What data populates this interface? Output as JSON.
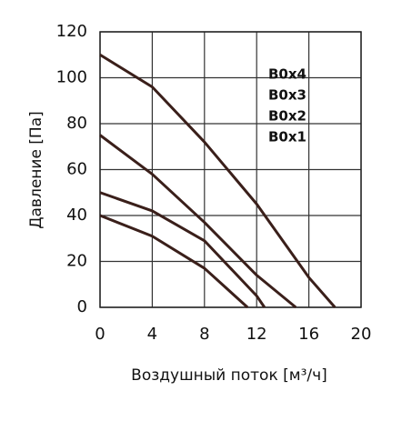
{
  "chart_data": {
    "type": "line",
    "xlabel": "Воздушный поток [м³/ч]",
    "ylabel": "Давление [Па]",
    "xlim": [
      0,
      20
    ],
    "xticks": [
      0,
      4,
      8,
      12,
      16,
      20
    ],
    "ylim": [
      0,
      120
    ],
    "yticks": [
      0,
      20,
      40,
      60,
      80,
      100,
      120
    ],
    "grid": true,
    "series": [
      {
        "name": "B0x4",
        "color": "#3a1f1a",
        "x": [
          0,
          4,
          8,
          12,
          16,
          18
        ],
        "values": [
          110,
          96,
          72,
          45,
          13,
          0
        ]
      },
      {
        "name": "B0x3",
        "color": "#3a1f1a",
        "x": [
          0,
          4,
          8,
          12,
          15
        ],
        "values": [
          75,
          58,
          37,
          14,
          0
        ]
      },
      {
        "name": "B0x2",
        "color": "#3a1f1a",
        "x": [
          0,
          4,
          8,
          12,
          12.6
        ],
        "values": [
          50,
          42,
          29,
          5,
          0
        ]
      },
      {
        "name": "B0x1",
        "color": "#3a1f1a",
        "x": [
          0,
          4,
          8,
          11.3
        ],
        "values": [
          40,
          31,
          17,
          0
        ]
      }
    ]
  }
}
